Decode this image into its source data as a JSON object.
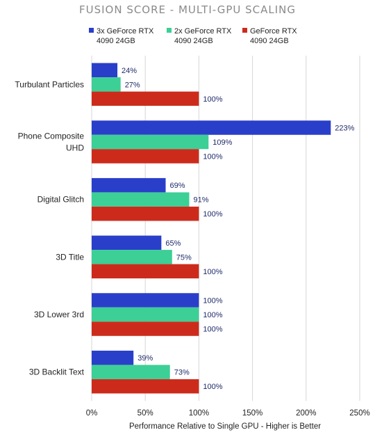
{
  "chart_data": {
    "type": "bar",
    "orientation": "horizontal",
    "title": "FUSION SCORE - MULTI-GPU SCALING",
    "xlabel": "Performance Relative to Single GPU - Higher is Better",
    "ylabel": "",
    "xlim": [
      0,
      250
    ],
    "x_ticks": [
      "0%",
      "50%",
      "100%",
      "150%",
      "200%",
      "250%"
    ],
    "x_tick_values": [
      0,
      50,
      100,
      150,
      200,
      250
    ],
    "grid": true,
    "legend_position": "top",
    "categories": [
      [
        "Turbulant Particles"
      ],
      [
        "Phone Composite",
        "UHD"
      ],
      [
        "Digital Glitch"
      ],
      [
        "3D Title"
      ],
      [
        "3D Lower 3rd"
      ],
      [
        "3D Backlit Text"
      ]
    ],
    "series": [
      {
        "name": [
          "3x GeForce RTX",
          "4090 24GB"
        ],
        "color": "#2a3fc9",
        "values": [
          24,
          223,
          69,
          65,
          100,
          39
        ],
        "labels": [
          "24%",
          "223%",
          "69%",
          "65%",
          "100%",
          "39%"
        ]
      },
      {
        "name": [
          "2x GeForce RTX",
          "4090 24GB"
        ],
        "color": "#3ccf96",
        "values": [
          27,
          109,
          91,
          75,
          100,
          73
        ],
        "labels": [
          "27%",
          "109%",
          "91%",
          "75%",
          "100%",
          "73%"
        ]
      },
      {
        "name": [
          "GeForce RTX",
          "4090 24GB"
        ],
        "color": "#cc2b1c",
        "values": [
          100,
          100,
          100,
          100,
          100,
          100
        ],
        "labels": [
          "100%",
          "100%",
          "100%",
          "100%",
          "100%",
          "100%"
        ]
      }
    ]
  }
}
